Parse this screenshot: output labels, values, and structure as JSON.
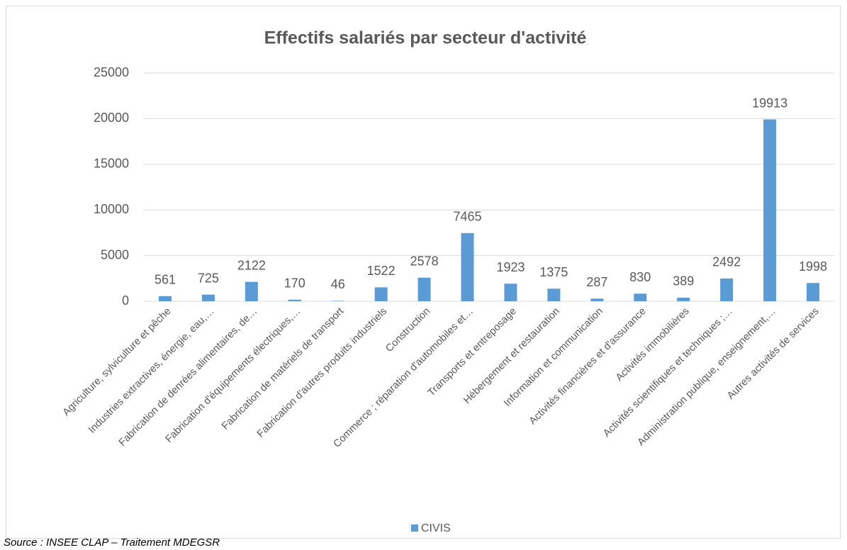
{
  "chart_data": {
    "type": "bar",
    "title": "Effectifs salariés par secteur d'activité",
    "categories": [
      "Agriculture, sylviculture et pêche",
      "Industries extractives,  énergie, eau,…",
      "Fabrication de denrées alimentaires, de…",
      "Fabrication d'équipements électriques,…",
      "Fabrication de matériels de transport",
      "Fabrication d'autres produits industriels",
      "Construction",
      "Commerce ; réparation d'automobiles et…",
      "Transports et entreposage",
      "Hébergement et restauration",
      "Information et communication",
      "Activités financières et d'assurance",
      "Activités immobilières",
      "Activités scientifiques et techniques ;…",
      "Administration publique, enseignement,…",
      "Autres activités de services"
    ],
    "series": [
      {
        "name": "CIVIS",
        "color": "#5b9bd5",
        "values": [
          561,
          725,
          2122,
          170,
          46,
          1522,
          2578,
          7465,
          1923,
          1375,
          287,
          830,
          389,
          2492,
          19913,
          1998
        ]
      }
    ],
    "ylim": [
      0,
      25000
    ],
    "yticks": [
      0,
      5000,
      10000,
      15000,
      20000,
      25000
    ],
    "grid": true,
    "legend": "bottom",
    "source": "Source : INSEE CLAP – Traitement MDEGSR"
  }
}
